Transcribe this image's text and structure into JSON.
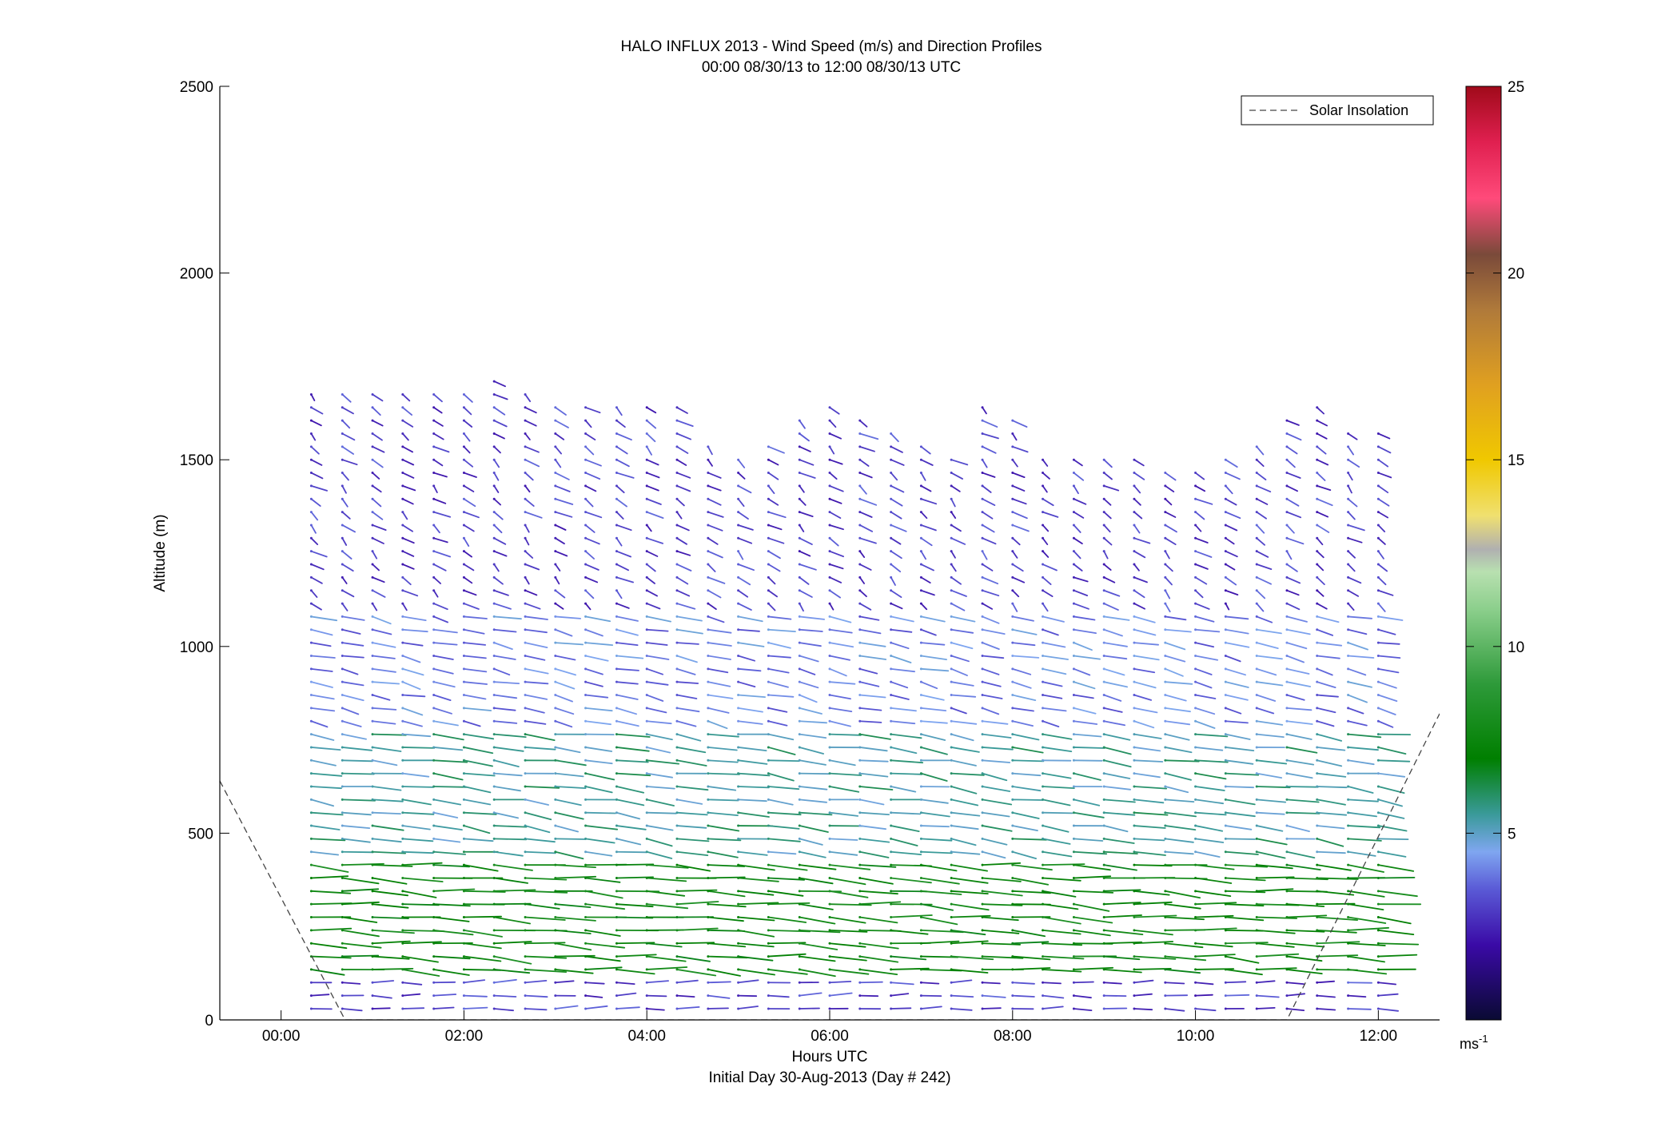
{
  "chart_data": {
    "type": "wind-barb-profile",
    "title": "HALO INFLUX 2013 - Wind Speed (m/s) and Direction Profiles",
    "subtitle": "00:00 08/30/13 to 12:00 08/30/13  UTC",
    "xlabel": "Hours UTC",
    "xlabel2": "Initial Day 30-Aug-2013 (Day # 242)",
    "ylabel": "Altitude (m)",
    "xlim_hours": [
      -0.67,
      12.67
    ],
    "ylim": [
      0,
      2500
    ],
    "x_ticks": [
      {
        "value": 0,
        "label": "00:00"
      },
      {
        "value": 2,
        "label": "02:00"
      },
      {
        "value": 4,
        "label": "04:00"
      },
      {
        "value": 6,
        "label": "06:00"
      },
      {
        "value": 8,
        "label": "08:00"
      },
      {
        "value": 10,
        "label": "10:00"
      },
      {
        "value": 12,
        "label": "12:00"
      }
    ],
    "y_ticks": [
      {
        "value": 0,
        "label": "0"
      },
      {
        "value": 500,
        "label": "500"
      },
      {
        "value": 1000,
        "label": "1000"
      },
      {
        "value": 1500,
        "label": "1500"
      },
      {
        "value": 2000,
        "label": "2000"
      },
      {
        "value": 2500,
        "label": "2500"
      }
    ],
    "legend": {
      "label": "Solar Insolation",
      "style": "dashed",
      "placement": "top-right"
    },
    "colorbar": {
      "range": [
        0,
        25
      ],
      "ticks": [
        {
          "value": 5,
          "label": "5"
        },
        {
          "value": 10,
          "label": "10"
        },
        {
          "value": 15,
          "label": "15"
        },
        {
          "value": 20,
          "label": "20"
        },
        {
          "value": 25,
          "label": "25"
        }
      ],
      "unit_base": "ms",
      "unit_exp": "-1",
      "stops": [
        {
          "v": 0,
          "color": "#0a0a33"
        },
        {
          "v": 2,
          "color": "#3a0aa6"
        },
        {
          "v": 3.5,
          "color": "#5a5ad6"
        },
        {
          "v": 4.5,
          "color": "#7fa6f0"
        },
        {
          "v": 5.5,
          "color": "#3a9a9a"
        },
        {
          "v": 7,
          "color": "#007f00"
        },
        {
          "v": 9,
          "color": "#2e9a3a"
        },
        {
          "v": 11,
          "color": "#8ccf8c"
        },
        {
          "v": 12,
          "color": "#b8e0b0"
        },
        {
          "v": 12.6,
          "color": "#b0b0b0"
        },
        {
          "v": 13.5,
          "color": "#f0e070"
        },
        {
          "v": 15,
          "color": "#f0c800"
        },
        {
          "v": 17,
          "color": "#e0a020"
        },
        {
          "v": 19,
          "color": "#b07a3a"
        },
        {
          "v": 20.5,
          "color": "#7a4a3a"
        },
        {
          "v": 22,
          "color": "#ff4a7a"
        },
        {
          "v": 23.5,
          "color": "#e02050"
        },
        {
          "v": 25,
          "color": "#a00a1a"
        }
      ]
    },
    "solar_insolation_line": [
      {
        "x": -0.67,
        "y": 640
      },
      {
        "x": 0.7,
        "y": 0
      },
      {
        "x": 11.0,
        "y": 0
      },
      {
        "x": 12.67,
        "y": 820
      }
    ],
    "profiles_hours": [
      0.33,
      0.67,
      1.0,
      1.33,
      1.67,
      2.0,
      2.33,
      2.67,
      3.0,
      3.33,
      3.67,
      4.0,
      4.33,
      4.67,
      5.0,
      5.33,
      5.67,
      6.0,
      6.33,
      6.67,
      7.0,
      7.33,
      7.67,
      8.0,
      8.33,
      8.67,
      9.0,
      9.33,
      9.67,
      10.0,
      10.33,
      10.67,
      11.0,
      11.33,
      11.67,
      12.0
    ],
    "profile_top_altitudes_m": [
      1700,
      1680,
      1700,
      1700,
      1700,
      1700,
      1730,
      1700,
      1670,
      1660,
      1640,
      1640,
      1640,
      1550,
      1520,
      1560,
      1620,
      1660,
      1620,
      1580,
      1550,
      1530,
      1660,
      1620,
      1530,
      1510,
      1500,
      1520,
      1490,
      1490,
      1500,
      1560,
      1620,
      1640,
      1600,
      1580
    ],
    "altitude_step_m": 35,
    "wind_regimes": [
      {
        "alt_range_m": [
          0,
          120
        ],
        "speed_ms": 3,
        "direction_deg": 270
      },
      {
        "alt_range_m": [
          120,
          450
        ],
        "speed_ms": 7.5,
        "direction_deg": 280
      },
      {
        "alt_range_m": [
          450,
          800
        ],
        "speed_ms": 5.5,
        "direction_deg": 290
      },
      {
        "alt_range_m": [
          800,
          1100
        ],
        "speed_ms": 4,
        "direction_deg": 300
      },
      {
        "alt_range_m": [
          1100,
          1750
        ],
        "speed_ms": 3,
        "direction_deg": 330
      }
    ]
  }
}
